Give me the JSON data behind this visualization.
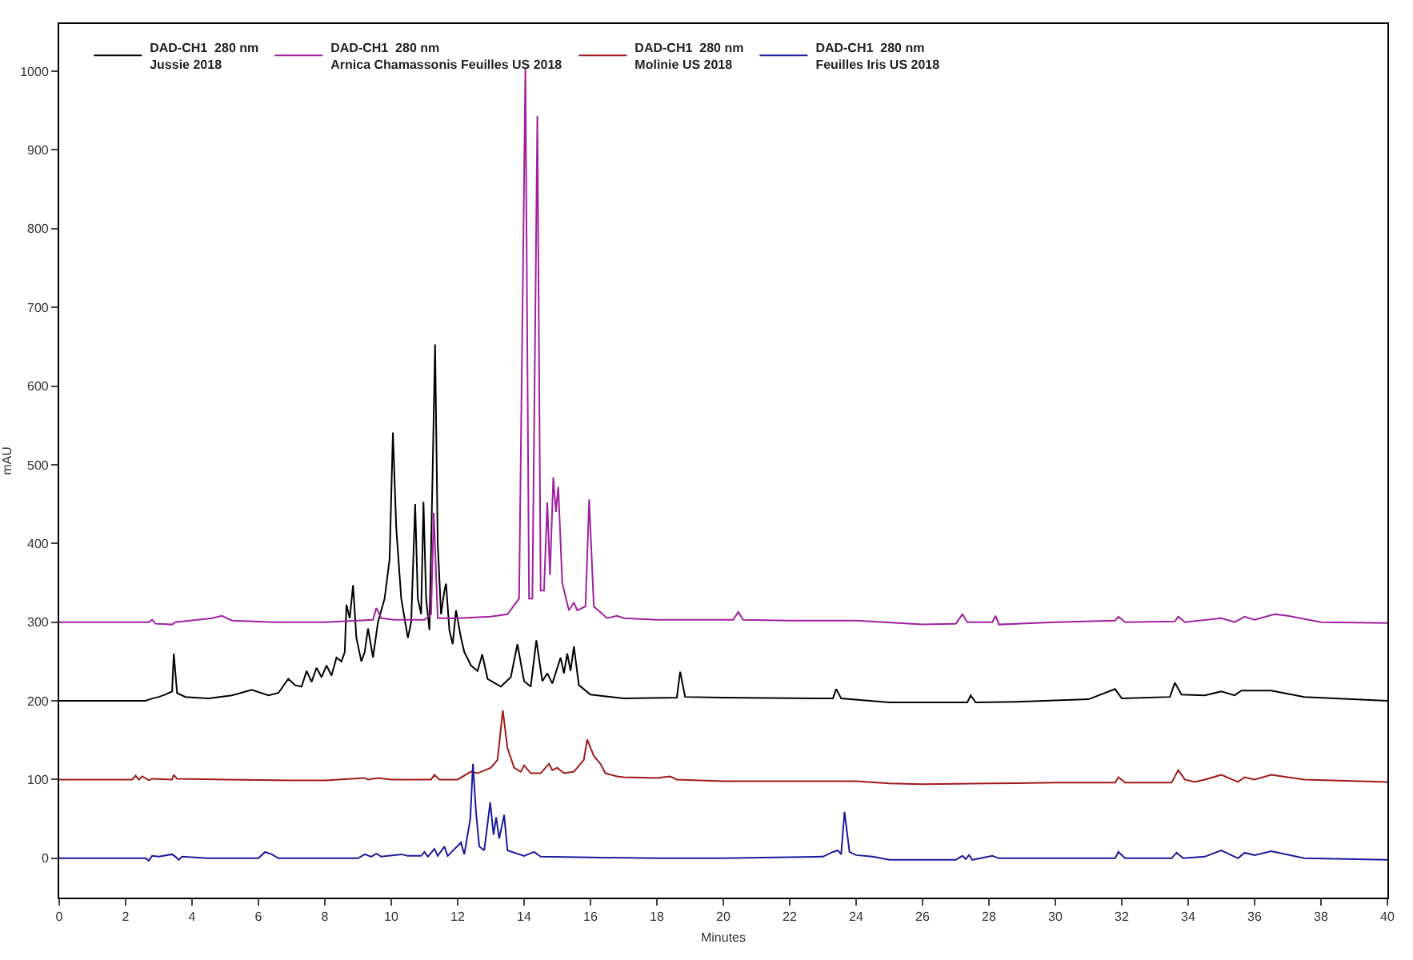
{
  "chart_data": {
    "type": "line",
    "xlabel": "Minutes",
    "ylabel": "mAU",
    "xlim": [
      0,
      40
    ],
    "xticks": [
      0,
      2,
      4,
      6,
      8,
      10,
      12,
      14,
      16,
      18,
      20,
      22,
      24,
      26,
      28,
      30,
      32,
      34,
      36,
      38,
      40
    ],
    "ylim": [
      -50,
      1060
    ],
    "yticks": [
      0,
      100,
      200,
      300,
      400,
      500,
      600,
      700,
      800,
      900,
      1000
    ],
    "grid": false,
    "legend": "top left",
    "marker": "none",
    "line_style": "solid",
    "series": [
      {
        "name": "DAD-CH1  280 nm\nJussie 2018",
        "color": "#000000",
        "x": [
          0,
          2.6,
          2.8,
          3.0,
          3.2,
          3.4,
          3.45,
          3.55,
          3.8,
          4.5,
          5.2,
          5.8,
          6.3,
          6.6,
          6.9,
          7.1,
          7.3,
          7.45,
          7.6,
          7.75,
          7.9,
          8.05,
          8.2,
          8.35,
          8.5,
          8.6,
          8.65,
          8.75,
          8.85,
          8.95,
          9.1,
          9.2,
          9.3,
          9.45,
          9.6,
          9.8,
          9.95,
          10.05,
          10.15,
          10.3,
          10.5,
          10.6,
          10.72,
          10.8,
          10.9,
          10.97,
          11.05,
          11.15,
          11.25,
          11.32,
          11.4,
          11.5,
          11.6,
          11.65,
          11.75,
          11.85,
          11.95,
          12.1,
          12.2,
          12.4,
          12.6,
          12.74,
          12.9,
          13.3,
          13.6,
          13.8,
          14.0,
          14.2,
          14.37,
          14.55,
          14.7,
          14.85,
          15.1,
          15.2,
          15.3,
          15.4,
          15.5,
          15.65,
          16.0,
          17,
          18.6,
          18.7,
          18.85,
          20,
          23.3,
          23.4,
          23.55,
          25,
          26,
          27.35,
          27.45,
          27.6,
          29,
          31,
          31.8,
          32.0,
          33.45,
          33.6,
          33.8,
          34.5,
          35,
          35.4,
          35.6,
          36.5,
          37.5,
          40
        ],
        "values": [
          200,
          200,
          203,
          205,
          208,
          212,
          260,
          210,
          205,
          203,
          207,
          214,
          207,
          210,
          228,
          220,
          218,
          238,
          224,
          242,
          230,
          245,
          232,
          255,
          250,
          262,
          322,
          305,
          347,
          280,
          250,
          262,
          292,
          255,
          300,
          330,
          380,
          541,
          420,
          330,
          280,
          300,
          450,
          330,
          310,
          453,
          330,
          290,
          500,
          653,
          400,
          310,
          340,
          349,
          290,
          272,
          315,
          280,
          262,
          245,
          238,
          259,
          228,
          218,
          230,
          272,
          225,
          218,
          277,
          225,
          235,
          222,
          255,
          235,
          260,
          238,
          269,
          220,
          208,
          203,
          204,
          237,
          205,
          204,
          203,
          215,
          203,
          198,
          198,
          198,
          207,
          198,
          199,
          202,
          215,
          203,
          205,
          223,
          208,
          207,
          212,
          207,
          213,
          213,
          205,
          200
        ]
      },
      {
        "name": "DAD-CH1  280 nm\nArnica Chamassonis Feuilles US 2018",
        "color": "#a020a0",
        "x": [
          0,
          2.7,
          2.8,
          2.9,
          3.4,
          3.5,
          4.6,
          4.9,
          5.2,
          6.5,
          8,
          9.45,
          9.55,
          9.7,
          10.1,
          11,
          11.2,
          11.28,
          11.4,
          12,
          13,
          13.5,
          13.85,
          14.04,
          14.15,
          14.25,
          14.4,
          14.5,
          14.6,
          14.7,
          14.78,
          14.88,
          14.96,
          15.03,
          15.15,
          15.35,
          15.5,
          15.6,
          15.85,
          15.96,
          16.1,
          16.5,
          16.8,
          17,
          18,
          20.3,
          20.45,
          20.6,
          22,
          24,
          26,
          27,
          27.2,
          27.35,
          28.1,
          28.2,
          28.3,
          30,
          31.8,
          31.9,
          32.1,
          33.6,
          33.7,
          33.9,
          35,
          35.4,
          35.7,
          36,
          36.6,
          37,
          38,
          40
        ],
        "values": [
          300,
          300,
          303,
          298,
          297,
          300,
          305,
          308,
          302,
          300,
          300,
          303,
          318,
          305,
          303,
          303,
          310,
          439,
          305,
          305,
          307,
          310,
          330,
          1004,
          330,
          330,
          943,
          340,
          340,
          452,
          360,
          484,
          440,
          472,
          350,
          315,
          325,
          315,
          320,
          456,
          320,
          305,
          308,
          305,
          303,
          303,
          313,
          303,
          302,
          302,
          297,
          298,
          310,
          300,
          300,
          308,
          297,
          300,
          302,
          307,
          300,
          301,
          307,
          300,
          305,
          300,
          307,
          303,
          310,
          308,
          300,
          299
        ]
      },
      {
        "name": "DAD-CH1  280 nm\nMolinie US 2018",
        "color": "#a01818",
        "x": [
          0,
          2.2,
          2.3,
          2.4,
          2.5,
          2.7,
          2.8,
          3.4,
          3.45,
          3.55,
          5,
          7,
          8,
          9.2,
          9.3,
          9.6,
          10,
          11.2,
          11.3,
          11.45,
          12,
          12.4,
          12.6,
          13.0,
          13.2,
          13.36,
          13.5,
          13.7,
          13.9,
          14.0,
          14.2,
          14.5,
          14.75,
          14.85,
          15.0,
          15.2,
          15.5,
          15.8,
          15.9,
          16.1,
          16.3,
          16.45,
          16.8,
          17,
          18,
          18.4,
          18.6,
          20,
          24,
          25,
          26,
          28,
          30,
          31.8,
          31.9,
          32.1,
          33.5,
          33.7,
          33.9,
          34.2,
          34.5,
          35,
          35.5,
          35.7,
          36,
          36.5,
          37.5,
          40
        ],
        "values": [
          100,
          100,
          105,
          100,
          104,
          99,
          101,
          100,
          106,
          101,
          100,
          99,
          99,
          102,
          100,
          102,
          100,
          100,
          106,
          100,
          100,
          110,
          108,
          115,
          125,
          188,
          140,
          115,
          110,
          118,
          108,
          108,
          120,
          112,
          115,
          108,
          110,
          125,
          151,
          130,
          120,
          108,
          104,
          103,
          102,
          104,
          100,
          98,
          98,
          95,
          94,
          95,
          96,
          96,
          103,
          96,
          96,
          112,
          100,
          97,
          100,
          106,
          97,
          103,
          100,
          106,
          100,
          97
        ]
      },
      {
        "name": "DAD-CH1  280 nm\nFeuilles Iris US 2018",
        "color": "#1a1a9a",
        "x": [
          0,
          2.6,
          2.7,
          2.8,
          3.0,
          3.4,
          3.5,
          3.6,
          3.7,
          4.5,
          6.0,
          6.2,
          6.4,
          6.6,
          9,
          9.2,
          9.4,
          9.55,
          9.7,
          10.3,
          10.5,
          10.9,
          11.0,
          11.1,
          11.3,
          11.4,
          11.6,
          11.7,
          12.1,
          12.2,
          12.38,
          12.46,
          12.55,
          12.65,
          12.8,
          12.98,
          13.08,
          13.16,
          13.25,
          13.4,
          13.5,
          14.0,
          14.3,
          14.5,
          16,
          18,
          20,
          23,
          23.3,
          23.45,
          23.55,
          23.65,
          23.8,
          24,
          24.5,
          25,
          27,
          27.2,
          27.3,
          27.4,
          27.5,
          28.1,
          28.3,
          31.8,
          31.9,
          32.1,
          33.5,
          33.65,
          33.85,
          34.5,
          35,
          35.5,
          35.7,
          36,
          36.5,
          37.5,
          40
        ],
        "values": [
          0,
          0,
          -3,
          3,
          2,
          5,
          2,
          -2,
          2,
          0,
          0,
          8,
          5,
          0,
          0,
          5,
          2,
          6,
          2,
          5,
          3,
          3,
          8,
          2,
          12,
          3,
          15,
          3,
          20,
          5,
          50,
          120,
          60,
          15,
          10,
          71,
          30,
          52,
          25,
          55,
          10,
          3,
          8,
          2,
          1,
          0,
          0,
          2,
          8,
          10,
          5,
          59,
          8,
          4,
          2,
          -2,
          -2,
          3,
          -1,
          4,
          -2,
          3,
          0,
          0,
          8,
          0,
          0,
          7,
          0,
          2,
          10,
          0,
          7,
          4,
          9,
          0,
          -2
        ]
      }
    ]
  }
}
